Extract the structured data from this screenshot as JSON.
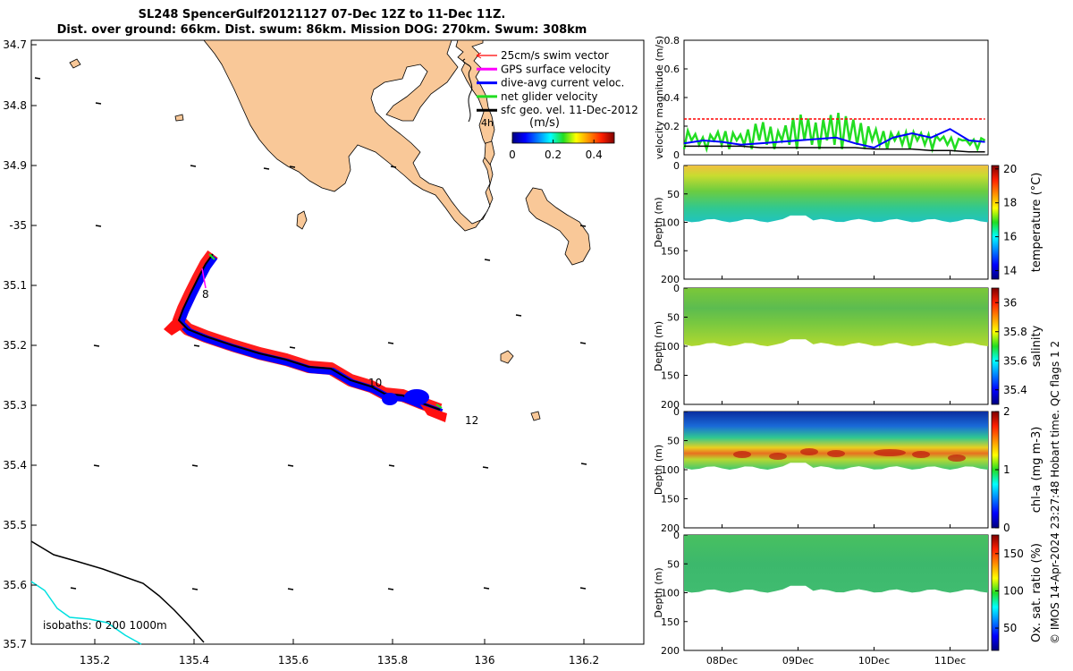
{
  "title": {
    "line1": "SL248 SpencerGulf20121127 07-Dec 12Z to 11-Dec 11Z.",
    "line2": "Dist. over ground: 66km. Dist. swum: 86km. Mission DOG: 270km. Swum: 308km"
  },
  "colors": {
    "land": "#f9c898",
    "swim_vector": "#ff0000",
    "gps_velocity": "#ff00ff",
    "dive_avg": "#0000ff",
    "net_glider": "#22dd22",
    "sfc_geo": "#000000",
    "isobath_0": "#000000",
    "isobath_200": "#00e0e0",
    "isobath_1000": "#000000"
  },
  "map": {
    "lat_ticks": [
      "34.7",
      "34.8",
      "34.9",
      "-35",
      "35.1",
      "35.2",
      "35.3",
      "35.4",
      "35.5",
      "35.6",
      "35.7"
    ],
    "lon_ticks": [
      "135.2",
      "135.4",
      "135.6",
      "135.8",
      "136",
      "136.2"
    ],
    "legend": [
      {
        "label": "25cm/s swim vector",
        "color": "#ff0000"
      },
      {
        "label": "GPS surface velocity",
        "color": "#ff00ff"
      },
      {
        "label": "dive-avg current veloc.",
        "color": "#0000ff"
      },
      {
        "label": "net glider velocity",
        "color": "#22dd22"
      },
      {
        "label": "sfc geo. vel. 11-Dec-2012",
        "color": "#000000"
      }
    ],
    "legend_note": "4h",
    "colorbar": {
      "unit": "(m/s)",
      "ticks": [
        "0",
        "0.2",
        "0.4"
      ],
      "range": [
        0,
        0.5
      ]
    },
    "day_labels": [
      "8",
      "10",
      "12"
    ],
    "isobath_label": "isobaths: 0   200   1000m"
  },
  "chart_data": [
    {
      "type": "line",
      "ylabel": "velocity magnitude (m/s)",
      "ylim": [
        0,
        0.8
      ],
      "yticks": [
        "0",
        "0.2",
        "0.4",
        "0.6",
        "0.8"
      ],
      "x": [
        7.5,
        7.75,
        8.0,
        8.25,
        8.5,
        8.75,
        9.0,
        9.25,
        9.5,
        9.75,
        10.0,
        10.25,
        10.5,
        10.75,
        11.0,
        11.25,
        11.46
      ],
      "series": [
        {
          "color": "#22dd22",
          "values": [
            0.18,
            0.12,
            0.17,
            0.14,
            0.24,
            0.16,
            0.29,
            0.22,
            0.3,
            0.24,
            0.18,
            0.15,
            0.16,
            0.14,
            0.12,
            0.1,
            0.12
          ]
        },
        {
          "color": "#0000ff",
          "values": [
            0.08,
            0.1,
            0.09,
            0.07,
            0.08,
            0.09,
            0.1,
            0.11,
            0.12,
            0.08,
            0.05,
            0.12,
            0.15,
            0.12,
            0.18,
            0.1,
            0.09
          ]
        },
        {
          "color": "#ff0000",
          "values": [
            0.25,
            0.25,
            0.25,
            0.25,
            0.25,
            0.25,
            0.25,
            0.25,
            0.25,
            0.25,
            0.25,
            0.25,
            0.25,
            0.25,
            0.25,
            0.25,
            0.25
          ]
        },
        {
          "color": "#000000",
          "values": [
            0.06,
            0.06,
            0.06,
            0.06,
            0.05,
            0.05,
            0.05,
            0.05,
            0.05,
            0.05,
            0.04,
            0.04,
            0.04,
            0.03,
            0.03,
            0.02,
            0.02
          ]
        }
      ]
    },
    {
      "type": "heatmap",
      "variable": "temperature (°C)",
      "ylabel": "Depth (m)",
      "yticks": [
        "0",
        "50",
        "100",
        "150",
        "200"
      ],
      "colorbar_ticks": [
        "14",
        "16",
        "18",
        "20"
      ],
      "clim": [
        13.5,
        20.2
      ]
    },
    {
      "type": "heatmap",
      "variable": "salinity",
      "ylabel": "Depth (m)",
      "yticks": [
        "0",
        "50",
        "100",
        "150",
        "200"
      ],
      "colorbar_ticks": [
        "35.4",
        "35.6",
        "35.8",
        "36"
      ],
      "clim": [
        35.3,
        36.1
      ]
    },
    {
      "type": "heatmap",
      "variable": "chl-a (mg m-3)",
      "ylabel": "Depth (m)",
      "yticks": [
        "0",
        "50",
        "100",
        "150",
        "200"
      ],
      "colorbar_ticks": [
        "0",
        "1",
        "2"
      ],
      "clim": [
        0,
        2
      ]
    },
    {
      "type": "heatmap",
      "variable": "Ox. sat. ratio (%)",
      "ylabel": "Depth (m)",
      "yticks": [
        "0",
        "50",
        "100",
        "150",
        "200"
      ],
      "colorbar_ticks": [
        "50",
        "100",
        "150"
      ],
      "clim": [
        20,
        175
      ]
    }
  ],
  "time_axis": {
    "ticks": [
      "08Dec",
      "09Dec",
      "10Dec",
      "11Dec"
    ]
  },
  "footer": "© IMOS 14-Apr-2024 23:27:48 Hobart time. QC flags 1  2"
}
